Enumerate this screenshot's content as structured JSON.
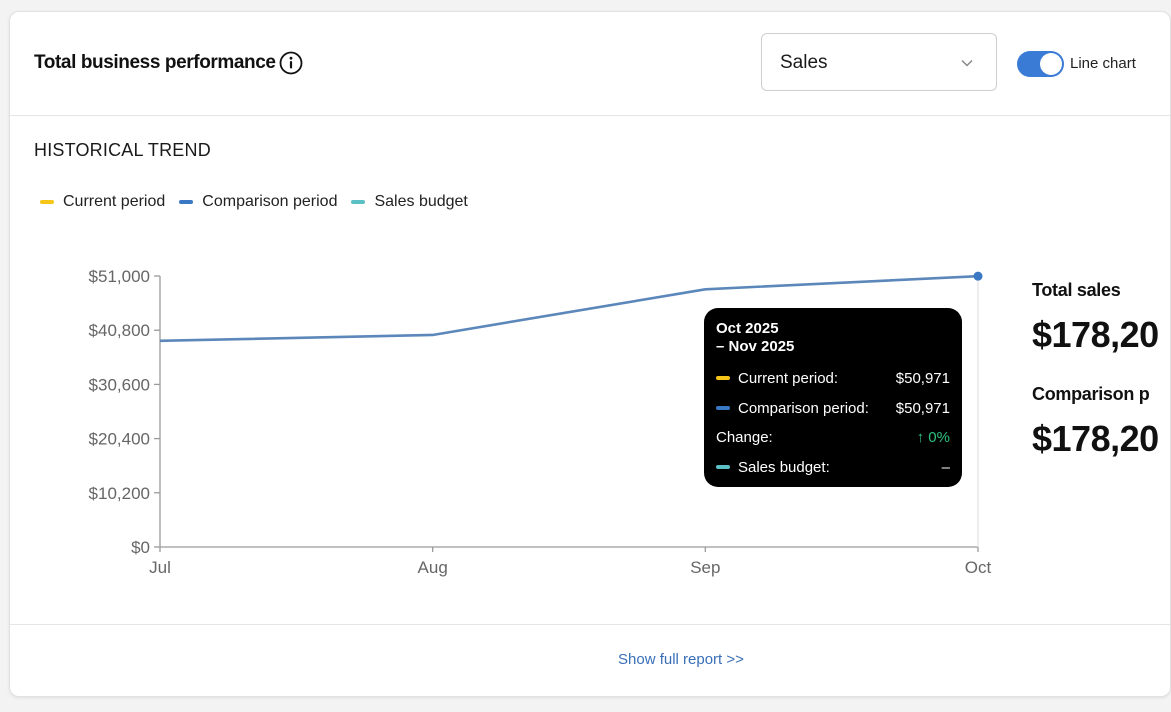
{
  "header": {
    "title": "Total business performance",
    "metric_select": {
      "value": "Sales"
    },
    "view_toggle": {
      "label": "Line chart",
      "on": true
    }
  },
  "section": {
    "title": "HISTORICAL TREND"
  },
  "legend": [
    {
      "label": "Current period",
      "color": "#f5c518"
    },
    {
      "label": "Comparison period",
      "color": "#3a78c4"
    },
    {
      "label": "Sales budget",
      "color": "#5bc0c4"
    }
  ],
  "chart_data": {
    "type": "line",
    "categories": [
      "Jul",
      "Aug",
      "Sep",
      "Oct"
    ],
    "series": [
      {
        "name": "Comparison period",
        "color": "#5b87ba",
        "values": [
          38800,
          39900,
          48500,
          50971
        ]
      }
    ],
    "y_ticks": [
      "$0",
      "$10,200",
      "$20,400",
      "$30,600",
      "$40,800",
      "$51,000"
    ],
    "ylim": [
      0,
      51000
    ],
    "grid": false
  },
  "tooltip": {
    "period_line1": "Oct 2025",
    "period_line2": "– Nov 2025",
    "rows": [
      {
        "label": "Current period:",
        "value": "$50,971",
        "color": "#f5c518"
      },
      {
        "label": "Comparison period:",
        "value": "$50,971",
        "color": "#3a78c4"
      },
      {
        "label": "Change:",
        "value": "↑ 0%",
        "value_color": "#2ec27e"
      },
      {
        "label": "Sales budget:",
        "value": "–",
        "color": "#5bc0c4"
      }
    ]
  },
  "summary": {
    "total_label": "Total sales",
    "total_value": "$178,20",
    "comparison_label": "Comparison p",
    "comparison_value": "$178,20"
  },
  "footer": {
    "link": "Show full report >>"
  }
}
